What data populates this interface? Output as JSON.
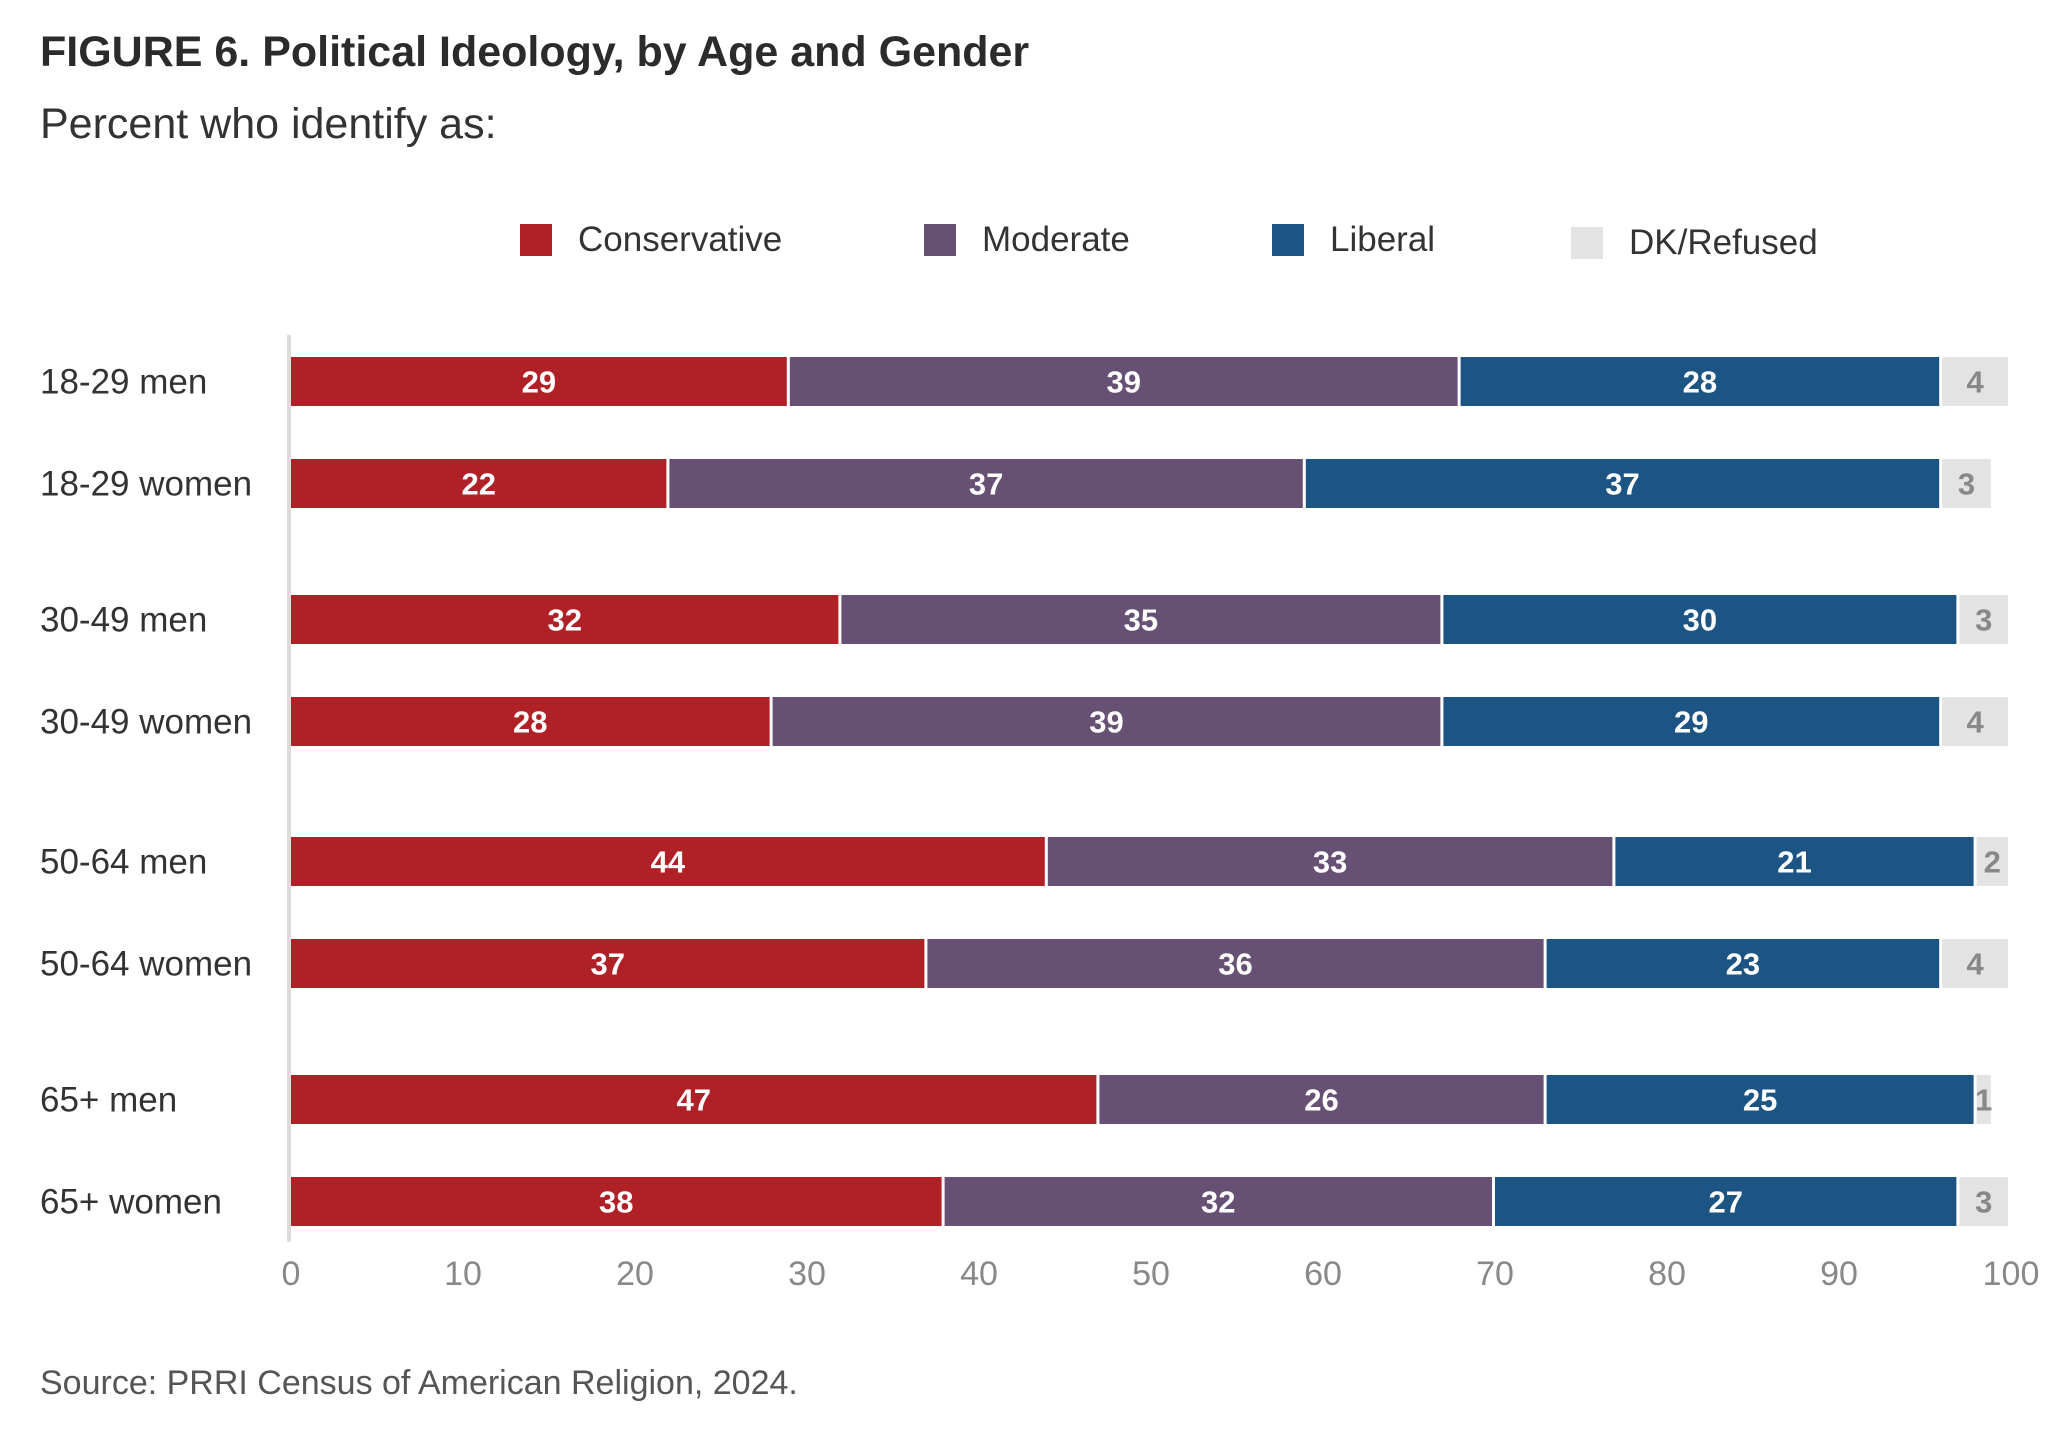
{
  "title": "FIGURE 6.  Political Ideology, by Age and Gender",
  "subtitle": "Percent who identify as:",
  "source": "Source: PRRI Census of American Religion, 2024.",
  "chart_data": {
    "type": "bar",
    "orientation": "horizontal",
    "stacked": true,
    "title": "FIGURE 6.  Political Ideology, by Age and Gender",
    "subtitle": "Percent who identify as:",
    "categories": [
      "18-29 men",
      "18-29 women",
      "30-49 men",
      "30-49 women",
      "50-64 men",
      "50-64 women",
      "65+ men",
      "65+ women"
    ],
    "series": [
      {
        "name": "Conservative",
        "color": "#b02127",
        "values": [
          29,
          22,
          32,
          28,
          44,
          37,
          47,
          38
        ]
      },
      {
        "name": "Moderate",
        "color": "#665073",
        "values": [
          39,
          37,
          35,
          39,
          33,
          36,
          26,
          32
        ]
      },
      {
        "name": "Liberal",
        "color": "#1c5584",
        "values": [
          28,
          37,
          30,
          29,
          21,
          23,
          25,
          27
        ]
      },
      {
        "name": "DK/Refused",
        "color": "#e3e3e3",
        "values": [
          4,
          3,
          3,
          4,
          2,
          4,
          1,
          3
        ]
      }
    ],
    "xlim": [
      0,
      100
    ],
    "xticks": [
      0,
      10,
      20,
      30,
      40,
      50,
      60,
      70,
      80,
      90,
      100
    ],
    "grid": false,
    "legend_position": "top"
  }
}
